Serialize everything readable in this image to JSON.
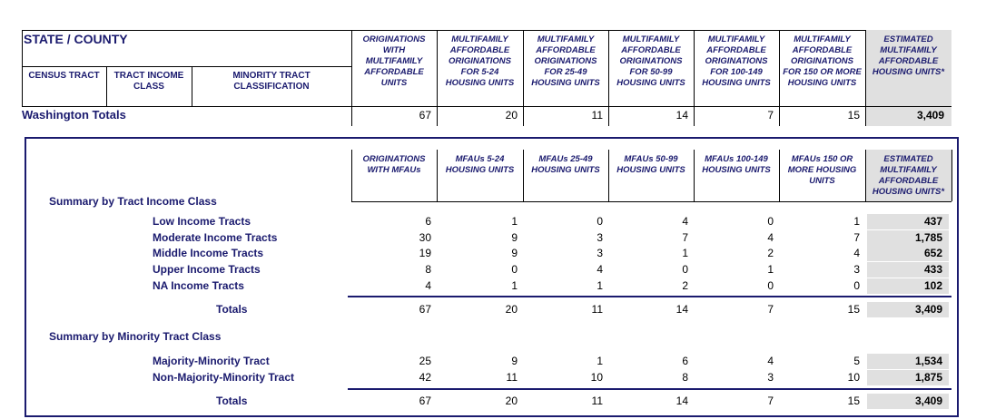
{
  "top": {
    "title": "STATE / COUNTY",
    "left_headers": [
      "CENSUS TRACT",
      "TRACT INCOME CLASS",
      "MINORITY TRACT CLASSIFICATION"
    ],
    "columns": [
      "ORIGINATIONS WITH MULTIFAMILY AFFORDABLE UNITS",
      "MULTIFAMILY AFFORDABLE ORIGINATIONS FOR 5-24 HOUSING UNITS",
      "MULTIFAMILY AFFORDABLE ORIGINATIONS FOR 25-49 HOUSING UNITS",
      "MULTIFAMILY AFFORDABLE ORIGINATIONS FOR 50-99 HOUSING UNITS",
      "MULTIFAMILY AFFORDABLE ORIGINATIONS FOR 100-149 HOUSING UNITS",
      "MULTIFAMILY AFFORDABLE ORIGINATIONS FOR 150 OR MORE HOUSING UNITS",
      "ESTIMATED MULTIFAMILY AFFORDABLE HOUSING UNITS*"
    ],
    "totals": {
      "label": "Washington Totals",
      "values": [
        67,
        20,
        11,
        14,
        7,
        15,
        "3,409"
      ]
    }
  },
  "summary": {
    "columns": [
      "ORIGINATIONS WITH MFAUs",
      "MFAUs 5-24 HOUSING UNITS",
      "MFAUs 25-49 HOUSING UNITS",
      "MFAUs 50-99 HOUSING UNITS",
      "MFAUs 100-149 HOUSING UNITS",
      "MFAUs 150 OR MORE HOUSING UNITS",
      "ESTIMATED MULTIFAMILY AFFORDABLE HOUSING UNITS*"
    ],
    "sections": [
      {
        "title": "Summary by Tract Income Class",
        "rows": [
          {
            "label": "Low Income Tracts",
            "values": [
              6,
              1,
              0,
              4,
              0,
              1,
              437
            ]
          },
          {
            "label": "Moderate Income Tracts",
            "values": [
              30,
              9,
              3,
              7,
              4,
              7,
              "1,785"
            ]
          },
          {
            "label": "Middle Income Tracts",
            "values": [
              19,
              9,
              3,
              1,
              2,
              4,
              652
            ]
          },
          {
            "label": "Upper Income Tracts",
            "values": [
              8,
              0,
              4,
              0,
              1,
              3,
              433
            ]
          },
          {
            "label": "NA Income Tracts",
            "values": [
              4,
              1,
              1,
              2,
              0,
              0,
              102
            ]
          }
        ],
        "totals": {
          "label": "Totals",
          "values": [
            67,
            20,
            11,
            14,
            7,
            15,
            "3,409"
          ]
        }
      },
      {
        "title": "Summary by Minority Tract Class",
        "rows": [
          {
            "label": "Majority-Minority Tract",
            "values": [
              25,
              9,
              1,
              6,
              4,
              5,
              "1,534"
            ]
          },
          {
            "label": "Non-Majority-Minority Tract",
            "values": [
              42,
              11,
              10,
              8,
              3,
              10,
              "1,875"
            ]
          }
        ],
        "totals": {
          "label": "Totals",
          "values": [
            67,
            20,
            11,
            14,
            7,
            15,
            "3,409"
          ]
        }
      }
    ]
  }
}
